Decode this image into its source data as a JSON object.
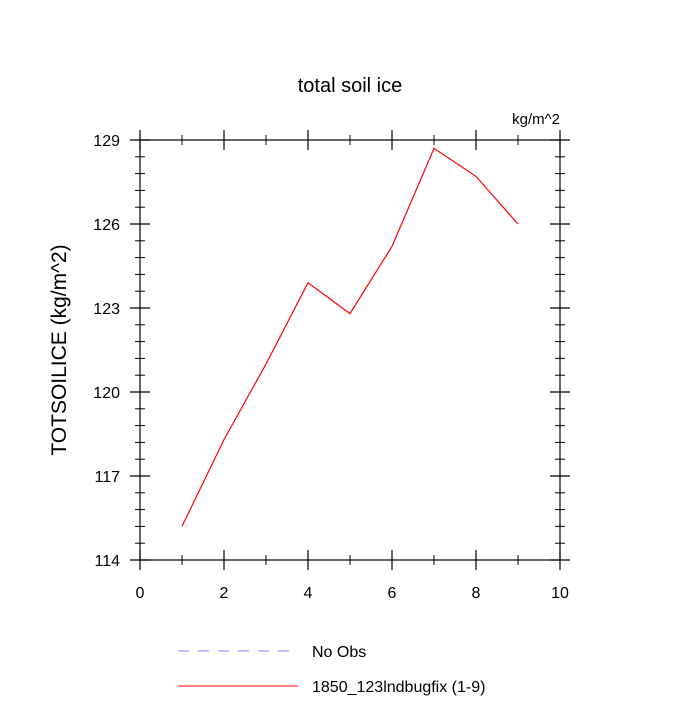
{
  "chart_data": {
    "type": "line",
    "title": "total soil ice",
    "units": "kg/m^2",
    "xlabel": "",
    "ylabel": "TOTSOILICE  (kg/m^2)",
    "xlim": [
      0,
      10
    ],
    "ylim": [
      114,
      129
    ],
    "xticks": [
      0,
      2,
      4,
      6,
      8,
      10
    ],
    "yticks": [
      114,
      117,
      120,
      123,
      126,
      129
    ],
    "xtick_labels": [
      "0",
      "2",
      "4",
      "6",
      "8",
      "10"
    ],
    "ytick_labels": [
      "114",
      "117",
      "120",
      "123",
      "126",
      "129"
    ],
    "grid": false,
    "series": [
      {
        "name": "1850_123lndbugfix (1-9)",
        "color": "#ff0000",
        "x": [
          1,
          2,
          3,
          4,
          5,
          6,
          7,
          8,
          9
        ],
        "y": [
          115.2,
          118.3,
          121.0,
          123.9,
          122.8,
          125.2,
          128.7,
          127.7,
          126.0
        ]
      }
    ],
    "legend": [
      {
        "label": "No Obs",
        "color": "#8080ff",
        "style": "dashed"
      },
      {
        "label": "1850_123lndbugfix (1-9)",
        "color": "#ff0000",
        "style": "solid"
      }
    ]
  }
}
